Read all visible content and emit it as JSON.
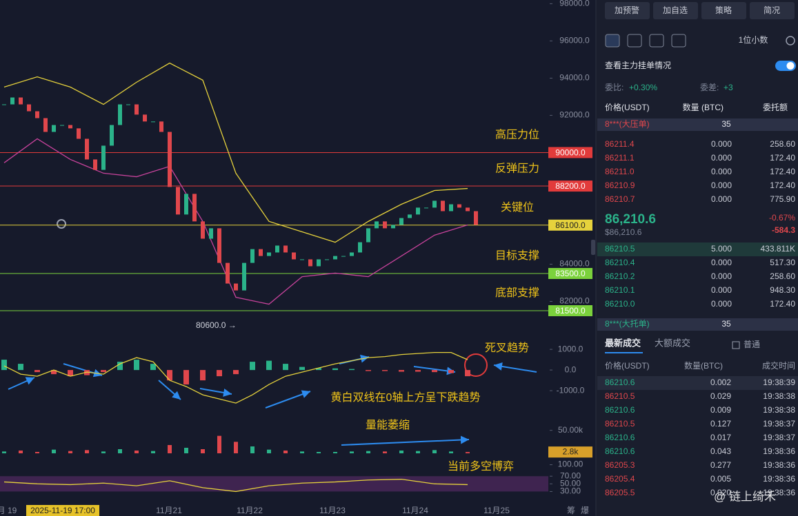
{
  "chart_data": {
    "type": "candlestick",
    "values": [
      92590,
      92960,
      92590,
      92220,
      91850,
      91110,
      91480,
      91480,
      91300,
      90740,
      89630,
      89070,
      90370,
      91480,
      92590,
      92590,
      92040,
      91670,
      91670,
      91110,
      88150,
      86670,
      87780,
      86300,
      85370,
      85930,
      84070,
      82960,
      82590,
      84070,
      84810,
      84440,
      84630,
      85000,
      84630,
      84260,
      84260,
      83890,
      84260,
      84260,
      84440,
      84440,
      84630,
      85180,
      85930,
      86300,
      85930,
      86110,
      86480,
      86670,
      87040,
      87040,
      87410,
      86850,
      87220,
      87040,
      86850,
      86110
    ],
    "upper_band": [
      93520,
      94070,
      93520,
      92590,
      93780,
      94810,
      93890,
      88890,
      86300,
      85740,
      85180,
      86300,
      87220,
      87960,
      88070
    ],
    "lower_band": [
      89450,
      90740,
      89630,
      88890,
      88700,
      89260,
      86300,
      82220,
      81850,
      83330,
      83520,
      83330,
      84440,
      85560,
      86110
    ],
    "up_color": "#2bb38a",
    "down_color": "#e0474c",
    "upper_color": "#e6d23c",
    "lower_color": "#c8439c",
    "ylim": [
      80500,
      98200
    ],
    "yticks": [
      {
        "value": 82000,
        "label": "82000.0"
      },
      {
        "value": 84000,
        "label": "84000.0"
      },
      {
        "value": 92000,
        "label": "92000.0"
      },
      {
        "value": 94000,
        "label": "94000.0"
      },
      {
        "value": 96000,
        "label": "96000.0"
      },
      {
        "value": 98000,
        "label": "98000.0"
      }
    ],
    "levels": [
      {
        "value": 90000,
        "label": "90000.0",
        "note": "高压力位",
        "color": "#e23b3b"
      },
      {
        "value": 88200,
        "label": "88200.0",
        "note": "反弹压力",
        "color": "#e23b3b"
      },
      {
        "value": 86100,
        "label": "86100.0",
        "note": "关键位",
        "color": "#e6d23c"
      },
      {
        "value": 83500,
        "label": "83500.0",
        "note": "目标支撑",
        "color": "#7bd23c"
      },
      {
        "value": 81500,
        "label": "81500.0",
        "note": "底部支撑",
        "color": "#7bd23c"
      }
    ],
    "low_label": "80600.0 →",
    "x_labels": [
      "月 19",
      "11月21",
      "11月22",
      "11月23",
      "11月24",
      "11月25"
    ],
    "cursor_label": "2025-11-19 17:00",
    "macd": {
      "values": [
        500,
        300,
        -100,
        -200,
        -300,
        -250,
        -100,
        400,
        500,
        300,
        -500,
        -700,
        -500,
        -300,
        -200,
        400,
        450,
        300,
        150,
        100,
        80,
        50,
        -50,
        -50,
        -80,
        -80,
        -100,
        -150,
        -300
      ],
      "dif": [
        200,
        -200,
        -300,
        0,
        -300,
        -100,
        -200,
        300,
        600,
        400,
        -500,
        -800,
        -1200,
        -1400,
        -1600,
        -1200,
        -700,
        -300,
        -100,
        100,
        300,
        450,
        600,
        650,
        750,
        800,
        850,
        850,
        500
      ],
      "ylim": [
        -1930,
        1570
      ],
      "yticks": [
        {
          "value": 1000,
          "label": "1000.0"
        },
        {
          "value": 0,
          "label": "0.0"
        },
        {
          "value": -1000,
          "label": "-1000.0"
        }
      ],
      "notes": [
        "死叉趋势",
        "黄白双线在0轴上方呈下跌趋势"
      ]
    },
    "volume": {
      "values": [
        4000,
        6000,
        3000,
        8000,
        5000,
        7000,
        4000,
        9000,
        6000,
        5000,
        18000,
        12000,
        9000,
        38000,
        25000,
        15000,
        8000,
        6000,
        4000,
        3000,
        3000,
        4000,
        5000,
        4000,
        6000,
        5000,
        7000,
        4000,
        2800
      ],
      "ylim": [
        0,
        60000
      ],
      "yticks": [
        {
          "value": 50000,
          "label": "50.00k"
        }
      ],
      "last": {
        "value": 2800,
        "label": "2.8k"
      },
      "note": "量能萎缩"
    },
    "rsi": {
      "values": [
        55,
        50,
        48,
        52,
        45,
        58,
        40,
        30,
        45,
        52,
        55,
        60,
        62,
        50,
        48
      ],
      "ylim": [
        20,
        110
      ],
      "yticks": [
        {
          "value": 100,
          "label": "100.00"
        },
        {
          "value": 70,
          "label": "70.00"
        },
        {
          "value": 50,
          "label": "50.00"
        },
        {
          "value": 30,
          "label": "30.00"
        }
      ],
      "note": "当前多空博弈"
    }
  },
  "panel": {
    "buttons": [
      "加预警",
      "加自选",
      "策略",
      "简况"
    ],
    "precision": "1位小数",
    "depth_toggle": "查看主力挂单情况",
    "ratio_label": "委比:",
    "ratio": "+0.30%",
    "diff_label": "委差:",
    "diff": "+3",
    "book_headers": [
      "价格(USDT)",
      "数量 (BTC)",
      "委托额"
    ],
    "ask_wall": {
      "label": "8***(大压单)",
      "value": "35"
    },
    "asks": [
      [
        "86211.4",
        "0.000",
        "258.60"
      ],
      [
        "86211.1",
        "0.000",
        "172.40"
      ],
      [
        "86211.0",
        "0.000",
        "172.40"
      ],
      [
        "86210.9",
        "0.000",
        "172.40"
      ],
      [
        "86210.7",
        "0.000",
        "775.90"
      ]
    ],
    "last_price": "86,210.6",
    "change": "-0.67%",
    "last_usd": "$86,210.6",
    "change_abs": "-584.3",
    "bids": [
      [
        "86210.5",
        "5.000",
        "433.811K"
      ],
      [
        "86210.4",
        "0.000",
        "517.30"
      ],
      [
        "86210.2",
        "0.000",
        "258.60"
      ],
      [
        "86210.1",
        "0.000",
        "948.30"
      ],
      [
        "86210.0",
        "0.000",
        "172.40"
      ]
    ],
    "bid_wall": {
      "label": "8***(大托单)",
      "value": "35"
    },
    "tabs": [
      "最新成交",
      "大额成交"
    ],
    "filter": "普通",
    "trade_headers": [
      "价格(USDT)",
      "数量(BTC)",
      "成交时间"
    ],
    "trades": [
      [
        "86210.6",
        "0.002",
        "19:38:39"
      ],
      [
        "86210.5",
        "0.029",
        "19:38:38"
      ],
      [
        "86210.6",
        "0.009",
        "19:38:38"
      ],
      [
        "86210.5",
        "0.127",
        "19:38:37"
      ],
      [
        "86210.6",
        "0.017",
        "19:38:37"
      ],
      [
        "86210.6",
        "0.043",
        "19:38:36"
      ],
      [
        "86205.3",
        "0.277",
        "19:38:36"
      ],
      [
        "86205.4",
        "0.005",
        "19:38:36"
      ],
      [
        "86205.5",
        "0.020",
        "19:38:36"
      ]
    ],
    "trade_colors": [
      "#2bb38a",
      "#e0474c",
      "#2bb38a",
      "#e0474c",
      "#2bb38a",
      "#2bb38a",
      "#e0474c",
      "#e0474c",
      "#e0474c"
    ]
  },
  "watermark": "@ 链上绮禾",
  "corner_labels": [
    "筹",
    "爆"
  ]
}
